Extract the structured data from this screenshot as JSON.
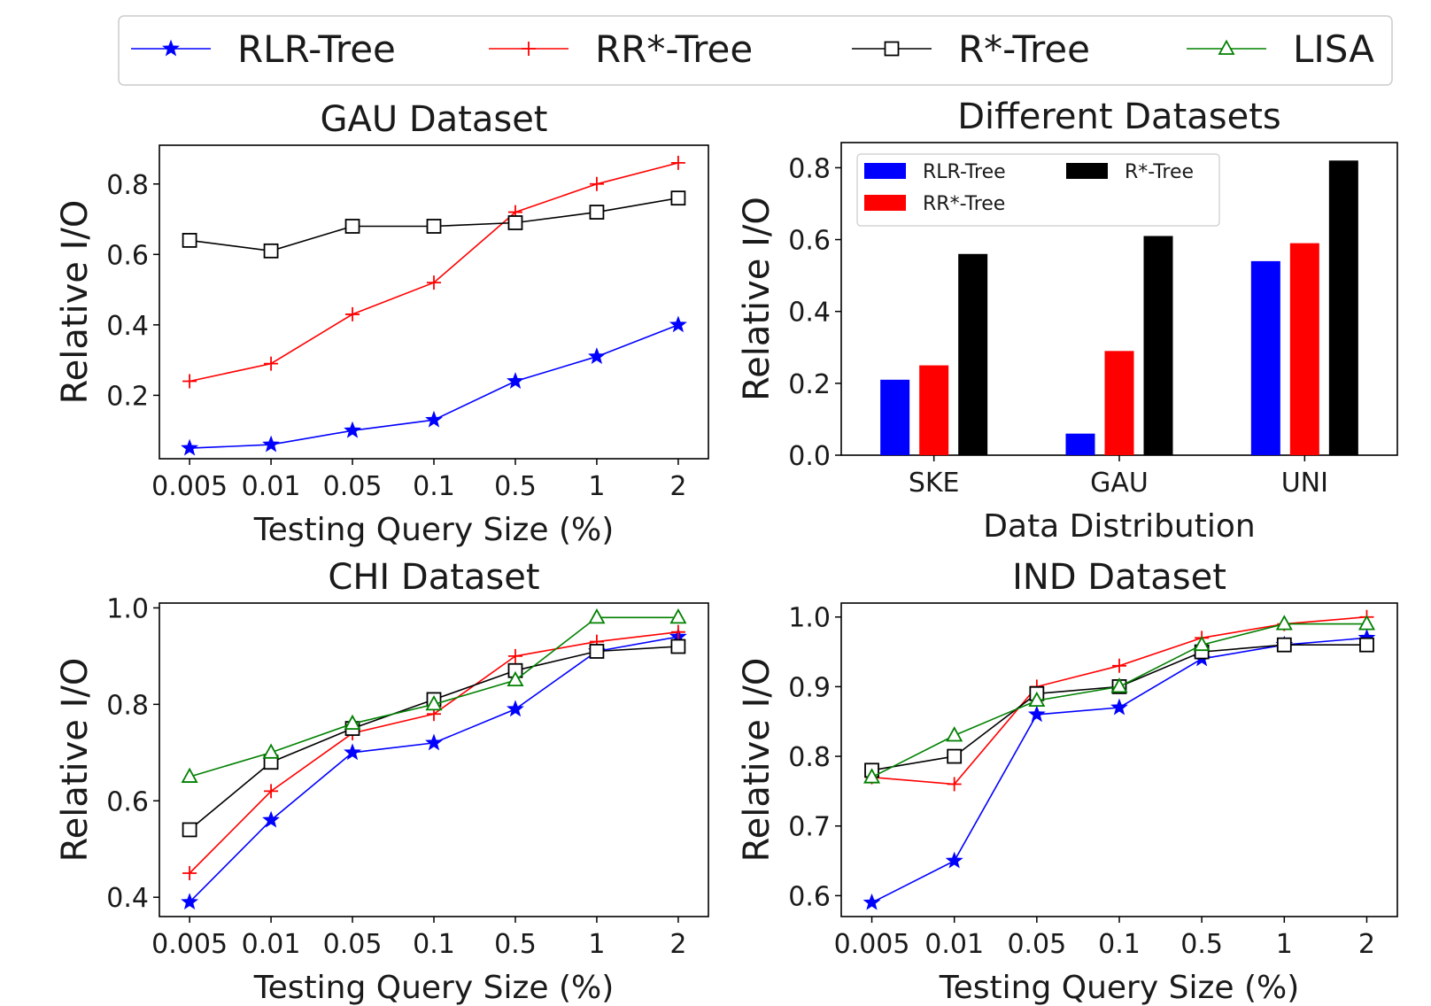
{
  "legend": {
    "entries": [
      {
        "name": "RLR-Tree",
        "color": "#0000ff",
        "marker": "star"
      },
      {
        "name": "RR*-Tree",
        "color": "#ff0000",
        "marker": "plus"
      },
      {
        "name": "R*-Tree",
        "color": "#000000",
        "marker": "square"
      },
      {
        "name": "LISA",
        "color": "#008000",
        "marker": "triangle"
      }
    ]
  },
  "chart_data": [
    {
      "type": "line",
      "title": "GAU Dataset",
      "xlabel": "Testing Query Size (%)",
      "ylabel": "Relative I/O",
      "categories": [
        "0.005",
        "0.01",
        "0.05",
        "0.1",
        "0.5",
        "1",
        "2"
      ],
      "ylim": [
        0.02,
        0.91
      ],
      "yticks": [
        0.2,
        0.4,
        0.6,
        0.8
      ],
      "ytick_labels": [
        "0.2",
        "0.4",
        "0.6",
        "0.8"
      ],
      "series": [
        {
          "name": "RLR-Tree",
          "color": "#0000ff",
          "marker": "star",
          "values": [
            0.05,
            0.06,
            0.1,
            0.13,
            0.24,
            0.31,
            0.4
          ]
        },
        {
          "name": "RR*-Tree",
          "color": "#ff0000",
          "marker": "plus",
          "values": [
            0.24,
            0.29,
            0.43,
            0.52,
            0.72,
            0.8,
            0.86
          ]
        },
        {
          "name": "R*-Tree",
          "color": "#000000",
          "marker": "square",
          "values": [
            0.64,
            0.61,
            0.68,
            0.68,
            0.69,
            0.72,
            0.76
          ]
        }
      ]
    },
    {
      "type": "bar",
      "title": "Different Datasets",
      "xlabel": "Data Distribution",
      "ylabel": "Relative I/O",
      "categories": [
        "SKE",
        "GAU",
        "UNI"
      ],
      "ylim": [
        0.0,
        0.87
      ],
      "yticks": [
        0.0,
        0.2,
        0.4,
        0.6,
        0.8
      ],
      "ytick_labels": [
        "0.0",
        "0.2",
        "0.4",
        "0.6",
        "0.8"
      ],
      "legend_position": "top-left",
      "series": [
        {
          "name": "RLR-Tree",
          "color": "#0000ff",
          "values": [
            0.21,
            0.06,
            0.54
          ]
        },
        {
          "name": "RR*-Tree",
          "color": "#ff0000",
          "values": [
            0.25,
            0.29,
            0.59
          ]
        },
        {
          "name": "R*-Tree",
          "color": "#000000",
          "values": [
            0.56,
            0.61,
            0.82
          ]
        }
      ]
    },
    {
      "type": "line",
      "title": "CHI Dataset",
      "xlabel": "Testing Query Size (%)",
      "ylabel": "Relative I/O",
      "categories": [
        "0.005",
        "0.01",
        "0.05",
        "0.1",
        "0.5",
        "1",
        "2"
      ],
      "ylim": [
        0.36,
        1.01
      ],
      "yticks": [
        0.4,
        0.6,
        0.8,
        1.0
      ],
      "ytick_labels": [
        "0.4",
        "0.6",
        "0.8",
        "1.0"
      ],
      "series": [
        {
          "name": "RLR-Tree",
          "color": "#0000ff",
          "marker": "star",
          "values": [
            0.39,
            0.56,
            0.7,
            0.72,
            0.79,
            0.91,
            0.94
          ]
        },
        {
          "name": "RR*-Tree",
          "color": "#ff0000",
          "marker": "plus",
          "values": [
            0.45,
            0.62,
            0.74,
            0.78,
            0.9,
            0.93,
            0.95
          ]
        },
        {
          "name": "R*-Tree",
          "color": "#000000",
          "marker": "square",
          "values": [
            0.54,
            0.68,
            0.75,
            0.81,
            0.87,
            0.91,
            0.92
          ]
        },
        {
          "name": "LISA",
          "color": "#008000",
          "marker": "triangle",
          "values": [
            0.65,
            0.7,
            0.76,
            0.8,
            0.85,
            0.98,
            0.98
          ]
        }
      ]
    },
    {
      "type": "line",
      "title": "IND Dataset",
      "xlabel": "Testing Query Size (%)",
      "ylabel": "Relative I/O",
      "categories": [
        "0.005",
        "0.01",
        "0.05",
        "0.1",
        "0.5",
        "1",
        "2"
      ],
      "ylim": [
        0.57,
        1.02
      ],
      "yticks": [
        0.6,
        0.7,
        0.8,
        0.9,
        1.0
      ],
      "ytick_labels": [
        "0.6",
        "0.7",
        "0.8",
        "0.9",
        "1.0"
      ],
      "series": [
        {
          "name": "RLR-Tree",
          "color": "#0000ff",
          "marker": "star",
          "values": [
            0.59,
            0.65,
            0.86,
            0.87,
            0.94,
            0.96,
            0.97
          ]
        },
        {
          "name": "RR*-Tree",
          "color": "#ff0000",
          "marker": "plus",
          "values": [
            0.77,
            0.76,
            0.9,
            0.93,
            0.97,
            0.99,
            1.0
          ]
        },
        {
          "name": "R*-Tree",
          "color": "#000000",
          "marker": "square",
          "values": [
            0.78,
            0.8,
            0.89,
            0.9,
            0.95,
            0.96,
            0.96
          ]
        },
        {
          "name": "LISA",
          "color": "#008000",
          "marker": "triangle",
          "values": [
            0.77,
            0.83,
            0.88,
            0.9,
            0.96,
            0.99,
            0.99
          ]
        }
      ]
    }
  ]
}
